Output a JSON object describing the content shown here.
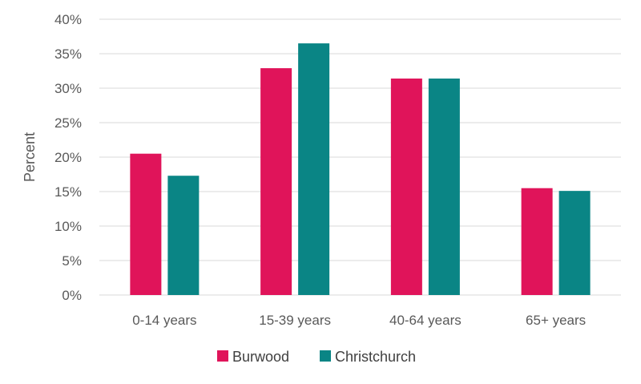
{
  "chart_data": {
    "type": "bar",
    "title": "",
    "xlabel": "",
    "ylabel": "Percent",
    "ylim": [
      0,
      40
    ],
    "yticks": [
      "0%",
      "5%",
      "10%",
      "15%",
      "20%",
      "25%",
      "30%",
      "35%",
      "40%"
    ],
    "ytick_values": [
      0,
      5,
      10,
      15,
      20,
      25,
      30,
      35,
      40
    ],
    "categories": [
      "0-14 years",
      "15-39 years",
      "40-64 years",
      "65+ years"
    ],
    "series": [
      {
        "name": "Burwood",
        "color": "#e0145a",
        "values": [
          20.5,
          32.9,
          31.4,
          15.5
        ]
      },
      {
        "name": "Christchurch",
        "color": "#0a8585",
        "values": [
          17.3,
          36.5,
          31.4,
          15.1
        ]
      }
    ],
    "grid": true,
    "legend_position": "bottom"
  }
}
